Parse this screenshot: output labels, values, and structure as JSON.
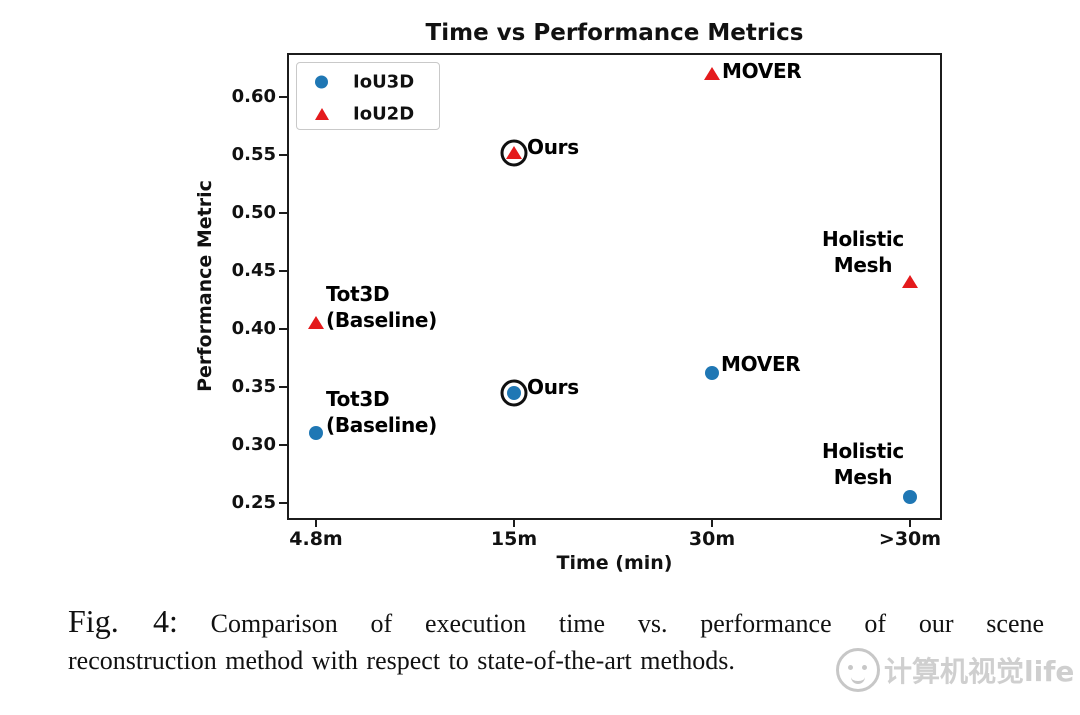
{
  "chart_data": {
    "type": "scatter",
    "title": "Time vs Performance Metrics",
    "xlabel": "Time (min)",
    "ylabel": "Performance Metric",
    "x_categories": [
      "4.8m",
      "15m",
      "30m",
      ">30m"
    ],
    "y_tick_labels": [
      "0.60",
      "0.55",
      "0.50",
      "0.45",
      "0.40",
      "0.35",
      "0.30",
      "0.25"
    ],
    "y_tick_values": [
      0.6,
      0.55,
      0.5,
      0.45,
      0.4,
      0.35,
      0.3,
      0.25
    ],
    "ylim": [
      0.235,
      0.638
    ],
    "grid": false,
    "legend_position": "upper left",
    "legend": [
      {
        "label": "IoU3D",
        "marker": "circle",
        "color": "#1f77b4"
      },
      {
        "label": "IoU2D",
        "marker": "triangle",
        "color": "#e41a1c"
      }
    ],
    "series": [
      {
        "name": "IoU2D",
        "marker": "triangle",
        "color": "#e41a1c",
        "points": [
          {
            "method": "Tot3D (Baseline)",
            "x": "4.8m",
            "xi": 0,
            "y": 0.405,
            "label_lines": [
              "Tot3D",
              "(Baseline)"
            ],
            "ring": false,
            "label_align": "left",
            "label_dx": 10,
            "label_dy": -16
          },
          {
            "method": "Ours",
            "x": "15m",
            "xi": 1,
            "y": 0.552,
            "label_lines": [
              "Ours"
            ],
            "ring": true,
            "label_align": "left",
            "label_dx": 13,
            "label_dy": -6
          },
          {
            "method": "MOVER",
            "x": "30m",
            "xi": 2,
            "y": 0.62,
            "label_lines": [
              "MOVER"
            ],
            "ring": false,
            "label_align": "left",
            "label_dx": 10,
            "label_dy": -3
          },
          {
            "method": "Holistic Mesh",
            "x": ">30m",
            "xi": 3,
            "y": 0.44,
            "label_lines": [
              "Holistic",
              "Mesh"
            ],
            "ring": false,
            "label_align": "center",
            "label_dx": -47,
            "label_dy": -30
          }
        ]
      },
      {
        "name": "IoU3D",
        "marker": "circle",
        "color": "#1f77b4",
        "points": [
          {
            "method": "Tot3D (Baseline)",
            "x": "4.8m",
            "xi": 0,
            "y": 0.31,
            "label_lines": [
              "Tot3D",
              "(Baseline)"
            ],
            "ring": false,
            "label_align": "left",
            "label_dx": 10,
            "label_dy": -21
          },
          {
            "method": "Ours",
            "x": "15m",
            "xi": 1,
            "y": 0.345,
            "label_lines": [
              "Ours"
            ],
            "ring": true,
            "label_align": "left",
            "label_dx": 13,
            "label_dy": -6
          },
          {
            "method": "MOVER",
            "x": "30m",
            "xi": 2,
            "y": 0.362,
            "label_lines": [
              "MOVER"
            ],
            "ring": false,
            "label_align": "left",
            "label_dx": 9,
            "label_dy": -9
          },
          {
            "method": "Holistic Mesh",
            "x": ">30m",
            "xi": 3,
            "y": 0.255,
            "label_lines": [
              "Holistic",
              "Mesh"
            ],
            "ring": false,
            "label_align": "center",
            "label_dx": -47,
            "label_dy": -33
          }
        ]
      }
    ]
  },
  "caption": {
    "prefix": "Fig. 4:",
    "line1": "Comparison of execution time vs. performance of our scene",
    "line2": "reconstruction method with respect to state-of-the-art methods."
  },
  "watermark": {
    "text": "计算机视觉life"
  }
}
